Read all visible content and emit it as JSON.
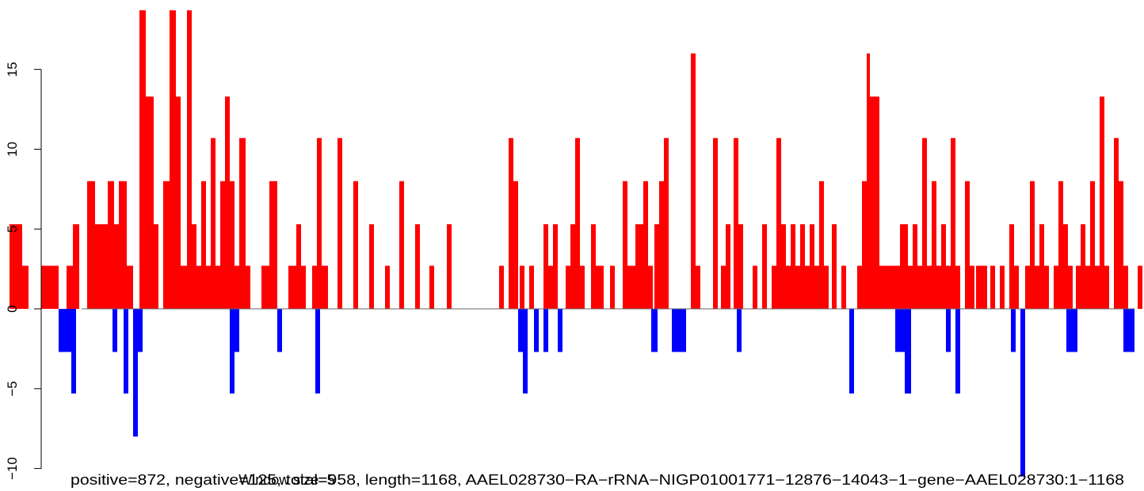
{
  "chart_data": {
    "type": "bar",
    "y_ticks": [
      -10,
      -5,
      0,
      5,
      10,
      15
    ],
    "y_tick_labels": [
      "−10",
      "−5",
      "0",
      "5",
      "10",
      "15"
    ],
    "ylim": [
      -10.5,
      18.8
    ],
    "xlim": [
      0,
      1168
    ],
    "grid": false,
    "colors": {
      "positive": "#ff0000",
      "negative": "#0000ff",
      "baseline": "#666666"
    },
    "caption_line1": "positive=872, negative=125, total=958, length=1168, AAEL028730−RA−rRNA−NIGP01001771−12876−14043−1−gene−AAEL028730:1−1168",
    "caption_line2": "Window size=5",
    "positive": [
      {
        "x": [
          12,
          28
        ],
        "y": 5.3
      },
      {
        "x": [
          28,
          36
        ],
        "y": 2.7
      },
      {
        "x": [
          52,
          74
        ],
        "y": 2.7
      },
      {
        "x": [
          84,
          92
        ],
        "y": 2.7
      },
      {
        "x": [
          92,
          100
        ],
        "y": 5.3
      },
      {
        "x": [
          110,
          120
        ],
        "y": 8
      },
      {
        "x": [
          120,
          136
        ],
        "y": 5.3
      },
      {
        "x": [
          136,
          144
        ],
        "y": 8
      },
      {
        "x": [
          144,
          150
        ],
        "y": 5.3
      },
      {
        "x": [
          150,
          160
        ],
        "y": 8
      },
      {
        "x": [
          160,
          168
        ],
        "y": 2.7
      },
      {
        "x": [
          176,
          184
        ],
        "y": 18.7
      },
      {
        "x": [
          184,
          194
        ],
        "y": 13.3
      },
      {
        "x": [
          194,
          200
        ],
        "y": 5.3
      },
      {
        "x": [
          206,
          214
        ],
        "y": 8
      },
      {
        "x": [
          214,
          222
        ],
        "y": 18.7
      },
      {
        "x": [
          222,
          228
        ],
        "y": 13.3
      },
      {
        "x": [
          228,
          236
        ],
        "y": 2.7
      },
      {
        "x": [
          236,
          242
        ],
        "y": 18.7
      },
      {
        "x": [
          242,
          248
        ],
        "y": 5.3
      },
      {
        "x": [
          248,
          254
        ],
        "y": 2.7
      },
      {
        "x": [
          254,
          260
        ],
        "y": 8
      },
      {
        "x": [
          260,
          266
        ],
        "y": 2.7
      },
      {
        "x": [
          266,
          272
        ],
        "y": 10.7
      },
      {
        "x": [
          272,
          278
        ],
        "y": 2.7
      },
      {
        "x": [
          278,
          284
        ],
        "y": 8
      },
      {
        "x": [
          284,
          290
        ],
        "y": 13.3
      },
      {
        "x": [
          290,
          296
        ],
        "y": 8
      },
      {
        "x": [
          296,
          302
        ],
        "y": 2.7
      },
      {
        "x": [
          302,
          310
        ],
        "y": 10.7
      },
      {
        "x": [
          310,
          316
        ],
        "y": 2.7
      },
      {
        "x": [
          330,
          340
        ],
        "y": 2.7
      },
      {
        "x": [
          340,
          350
        ],
        "y": 8
      },
      {
        "x": [
          364,
          374
        ],
        "y": 2.7
      },
      {
        "x": [
          374,
          380
        ],
        "y": 5.3
      },
      {
        "x": [
          380,
          386
        ],
        "y": 2.7
      },
      {
        "x": [
          394,
          400
        ],
        "y": 2.7
      },
      {
        "x": [
          400,
          406
        ],
        "y": 10.7
      },
      {
        "x": [
          406,
          414
        ],
        "y": 2.7
      },
      {
        "x": [
          426,
          432
        ],
        "y": 10.7
      },
      {
        "x": [
          446,
          452
        ],
        "y": 8
      },
      {
        "x": [
          466,
          472
        ],
        "y": 5.3
      },
      {
        "x": [
          486,
          492
        ],
        "y": 2.7
      },
      {
        "x": [
          504,
          510
        ],
        "y": 8
      },
      {
        "x": [
          524,
          530
        ],
        "y": 5.3
      },
      {
        "x": [
          542,
          548
        ],
        "y": 2.7
      },
      {
        "x": [
          564,
          570
        ],
        "y": 5.3
      },
      {
        "x": [
          630,
          636
        ],
        "y": 2.7
      },
      {
        "x": [
          642,
          648
        ],
        "y": 10.7
      },
      {
        "x": [
          648,
          654
        ],
        "y": 8
      },
      {
        "x": [
          656,
          662
        ],
        "y": 2.7
      },
      {
        "x": [
          668,
          674
        ],
        "y": 2.7
      },
      {
        "x": [
          686,
          692
        ],
        "y": 5.3
      },
      {
        "x": [
          692,
          698
        ],
        "y": 2.7
      },
      {
        "x": [
          698,
          704
        ],
        "y": 5.3
      },
      {
        "x": [
          714,
          720
        ],
        "y": 2.7
      },
      {
        "x": [
          720,
          726
        ],
        "y": 5.3
      },
      {
        "x": [
          726,
          732
        ],
        "y": 10.7
      },
      {
        "x": [
          732,
          738
        ],
        "y": 2.7
      },
      {
        "x": [
          746,
          752
        ],
        "y": 5.3
      },
      {
        "x": [
          752,
          762
        ],
        "y": 2.7
      },
      {
        "x": [
          770,
          776
        ],
        "y": 2.7
      },
      {
        "x": [
          786,
          792
        ],
        "y": 8
      },
      {
        "x": [
          792,
          802
        ],
        "y": 2.7
      },
      {
        "x": [
          802,
          812
        ],
        "y": 5.3
      },
      {
        "x": [
          812,
          818
        ],
        "y": 8
      },
      {
        "x": [
          818,
          824
        ],
        "y": 2.7
      },
      {
        "x": [
          826,
          832
        ],
        "y": 5.3
      },
      {
        "x": [
          832,
          838
        ],
        "y": 8
      },
      {
        "x": [
          838,
          844
        ],
        "y": 10.7
      },
      {
        "x": [
          872,
          878
        ],
        "y": 16
      },
      {
        "x": [
          878,
          884
        ],
        "y": 2.7
      },
      {
        "x": [
          900,
          906
        ],
        "y": 10.7
      },
      {
        "x": [
          910,
          916
        ],
        "y": 2.7
      },
      {
        "x": [
          916,
          922
        ],
        "y": 5.3
      },
      {
        "x": [
          926,
          932
        ],
        "y": 10.7
      },
      {
        "x": [
          932,
          938
        ],
        "y": 5.3
      },
      {
        "x": [
          950,
          956
        ],
        "y": 2.7
      },
      {
        "x": [
          962,
          968
        ],
        "y": 5.3
      },
      {
        "x": [
          974,
          980
        ],
        "y": 2.7
      },
      {
        "x": [
          980,
          986
        ],
        "y": 10.7
      },
      {
        "x": [
          986,
          992
        ],
        "y": 5.3
      },
      {
        "x": [
          992,
          998
        ],
        "y": 2.7
      },
      {
        "x": [
          998,
          1004
        ],
        "y": 5.3
      },
      {
        "x": [
          1004,
          1010
        ],
        "y": 2.7
      },
      {
        "x": [
          1010,
          1016
        ],
        "y": 5.3
      },
      {
        "x": [
          1016,
          1022
        ],
        "y": 2.7
      },
      {
        "x": [
          1022,
          1028
        ],
        "y": 5.3
      },
      {
        "x": [
          1028,
          1034
        ],
        "y": 2.7
      },
      {
        "x": [
          1034,
          1040
        ],
        "y": 8
      },
      {
        "x": [
          1040,
          1046
        ],
        "y": 2.7
      },
      {
        "x": [
          1050,
          1056
        ],
        "y": 5.3
      },
      {
        "x": [
          1062,
          1068
        ],
        "y": 2.7
      },
      {
        "x": [
          1082,
          1088
        ],
        "y": 2.7
      },
      {
        "x": [
          1088,
          1094
        ],
        "y": 8
      },
      {
        "x": [
          1094,
          1098
        ],
        "y": 16
      },
      {
        "x": [
          1098,
          1110
        ],
        "y": 13.3
      },
      {
        "x": [
          1110,
          1136
        ],
        "y": 2.7
      },
      {
        "x": [
          1136,
          1146
        ],
        "y": 5.3
      },
      {
        "x": [
          1146,
          1152
        ],
        "y": 2.7
      },
      {
        "x": [
          1152,
          1158
        ],
        "y": 5.3
      },
      {
        "x": [
          1158,
          1164
        ],
        "y": 2.7
      },
      {
        "x": [
          1164,
          1170
        ],
        "y": 10.7
      },
      {
        "x": [
          1170,
          1176
        ],
        "y": 2.7
      },
      {
        "x": [
          1176,
          1182
        ],
        "y": 8
      },
      {
        "x": [
          1182,
          1188
        ],
        "y": 2.7
      },
      {
        "x": [
          1188,
          1194
        ],
        "y": 5.3
      },
      {
        "x": [
          1194,
          1200
        ],
        "y": 2.7
      },
      {
        "x": [
          1200,
          1206
        ],
        "y": 10.7
      },
      {
        "x": [
          1206,
          1212
        ],
        "y": 2.7
      },
      {
        "x": [
          1218,
          1224
        ],
        "y": 8
      },
      {
        "x": [
          1224,
          1230
        ],
        "y": 2.7
      },
      {
        "x": [
          1232,
          1246
        ],
        "y": 2.7
      },
      {
        "x": [
          1250,
          1256
        ],
        "y": 2.7
      },
      {
        "x": [
          1262,
          1268
        ],
        "y": 2.7
      },
      {
        "x": [
          1274,
          1280
        ],
        "y": 5.3
      },
      {
        "x": [
          1280,
          1286
        ],
        "y": 2.7
      },
      {
        "x": [
          1294,
          1300
        ],
        "y": 2.7
      },
      {
        "x": [
          1300,
          1306
        ],
        "y": 8
      },
      {
        "x": [
          1306,
          1312
        ],
        "y": 2.7
      },
      {
        "x": [
          1312,
          1318
        ],
        "y": 5.3
      },
      {
        "x": [
          1318,
          1324
        ],
        "y": 2.7
      },
      {
        "x": [
          1330,
          1336
        ],
        "y": 2.7
      },
      {
        "x": [
          1336,
          1342
        ],
        "y": 8
      },
      {
        "x": [
          1342,
          1348
        ],
        "y": 5.3
      },
      {
        "x": [
          1348,
          1354
        ],
        "y": 2.7
      },
      {
        "x": [
          1358,
          1364
        ],
        "y": 2.7
      },
      {
        "x": [
          1364,
          1370
        ],
        "y": 5.3
      },
      {
        "x": [
          1370,
          1376
        ],
        "y": 2.7
      },
      {
        "x": [
          1376,
          1382
        ],
        "y": 8
      },
      {
        "x": [
          1382,
          1388
        ],
        "y": 2.7
      },
      {
        "x": [
          1388,
          1394
        ],
        "y": 13.3
      },
      {
        "x": [
          1394,
          1400
        ],
        "y": 2.7
      },
      {
        "x": [
          1406,
          1412
        ],
        "y": 10.7
      },
      {
        "x": [
          1412,
          1418
        ],
        "y": 8
      },
      {
        "x": [
          1418,
          1424
        ],
        "y": 2.7
      },
      {
        "x": [
          1436,
          1442
        ],
        "y": 2.7
      }
    ],
    "negative": [
      {
        "x": [
          74,
          90
        ],
        "y": -2.7
      },
      {
        "x": [
          90,
          96
        ],
        "y": -5.3
      },
      {
        "x": [
          142,
          148
        ],
        "y": -2.7
      },
      {
        "x": [
          156,
          162
        ],
        "y": -5.3
      },
      {
        "x": [
          168,
          174
        ],
        "y": -8
      },
      {
        "x": [
          174,
          180
        ],
        "y": -2.7
      },
      {
        "x": [
          290,
          296
        ],
        "y": -5.3
      },
      {
        "x": [
          296,
          302
        ],
        "y": -2.7
      },
      {
        "x": [
          350,
          356
        ],
        "y": -2.7
      },
      {
        "x": [
          398,
          404
        ],
        "y": -5.3
      },
      {
        "x": [
          654,
          660
        ],
        "y": -2.7
      },
      {
        "x": [
          660,
          666
        ],
        "y": -5.3
      },
      {
        "x": [
          674,
          680
        ],
        "y": -2.7
      },
      {
        "x": [
          686,
          692
        ],
        "y": -2.7
      },
      {
        "x": [
          704,
          710
        ],
        "y": -2.7
      },
      {
        "x": [
          822,
          830
        ],
        "y": -2.7
      },
      {
        "x": [
          848,
          866
        ],
        "y": -2.7
      },
      {
        "x": [
          930,
          936
        ],
        "y": -2.7
      },
      {
        "x": [
          1072,
          1078
        ],
        "y": -5.3
      },
      {
        "x": [
          1130,
          1142
        ],
        "y": -2.7
      },
      {
        "x": [
          1142,
          1150
        ],
        "y": -5.3
      },
      {
        "x": [
          1194,
          1200
        ],
        "y": -2.7
      },
      {
        "x": [
          1206,
          1212
        ],
        "y": -5.3
      },
      {
        "x": [
          1276,
          1282
        ],
        "y": -2.7
      },
      {
        "x": [
          1288,
          1294
        ],
        "y": -10.5
      },
      {
        "x": [
          1346,
          1360
        ],
        "y": -2.7
      },
      {
        "x": [
          1418,
          1432
        ],
        "y": -2.7
      }
    ]
  }
}
